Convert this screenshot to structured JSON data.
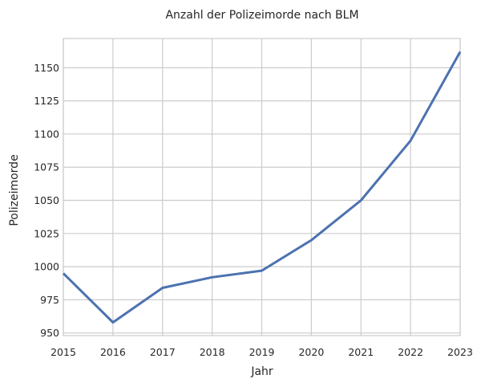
{
  "chart_data": {
    "type": "line",
    "title": "Anzahl der Polizeimorde nach BLM",
    "xlabel": "Jahr",
    "ylabel": "Polizeimorde",
    "x": [
      2015,
      2016,
      2017,
      2018,
      2019,
      2020,
      2021,
      2022,
      2023
    ],
    "xlim": [
      2015,
      2023
    ],
    "ylim": [
      948,
      1172
    ],
    "x_ticks": [
      "2015",
      "2016",
      "2017",
      "2018",
      "2019",
      "2020",
      "2021",
      "2022",
      "2023"
    ],
    "y_ticks": [
      950,
      975,
      1000,
      1025,
      1050,
      1075,
      1100,
      1125,
      1150
    ],
    "y_tick_labels": [
      "950",
      "975",
      "1000",
      "1025",
      "1050",
      "1075",
      "1100",
      "1125",
      "1150"
    ],
    "series": [
      {
        "values": [
          995,
          958,
          984,
          992,
          997,
          1020,
          1050,
          1095,
          1162
        ],
        "color": "#4c72b0"
      }
    ],
    "grid": true,
    "legend": "none"
  }
}
